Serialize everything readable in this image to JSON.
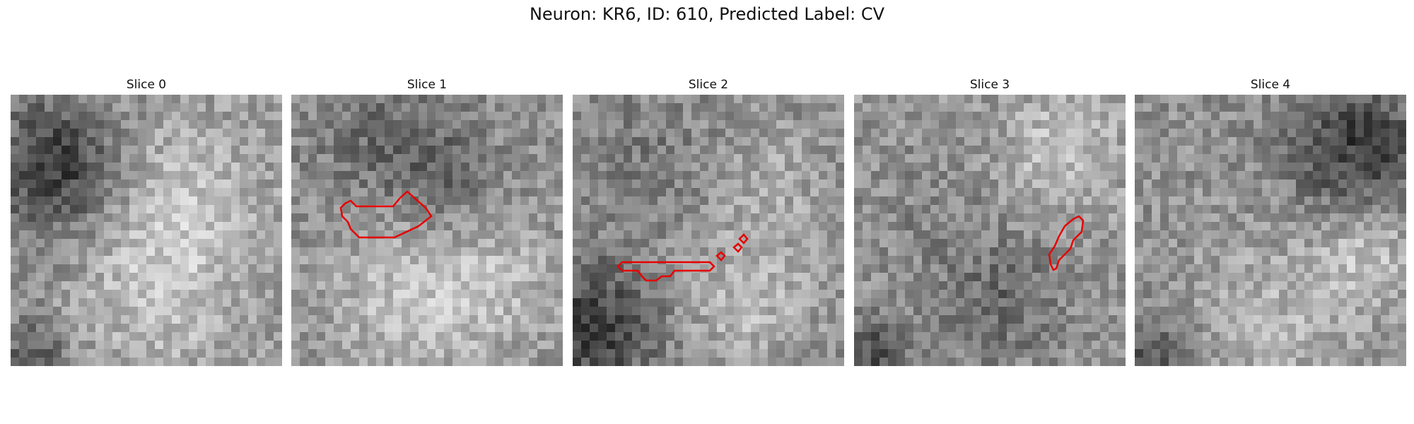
{
  "figure": {
    "title": "Neuron: KR6, ID: 610, Predicted Label: CV"
  },
  "panels": [
    {
      "title": "Slice 0",
      "has_outline": false
    },
    {
      "title": "Slice 1",
      "has_outline": true
    },
    {
      "title": "Slice 2",
      "has_outline": true
    },
    {
      "title": "Slice 3",
      "has_outline": true
    },
    {
      "title": "Slice 4",
      "has_outline": false
    }
  ],
  "colors": {
    "outline": "#e60000",
    "background": "#ffffff"
  }
}
